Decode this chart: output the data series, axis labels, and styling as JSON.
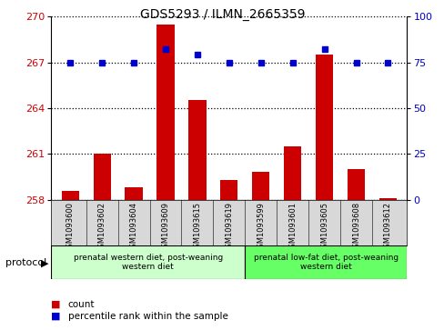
{
  "title": "GDS5293 / ILMN_2665359",
  "samples": [
    "GSM1093600",
    "GSM1093602",
    "GSM1093604",
    "GSM1093609",
    "GSM1093615",
    "GSM1093619",
    "GSM1093599",
    "GSM1093601",
    "GSM1093605",
    "GSM1093608",
    "GSM1093612"
  ],
  "bar_values": [
    258.6,
    261.0,
    258.8,
    269.5,
    264.5,
    259.3,
    259.8,
    261.5,
    267.5,
    260.0,
    258.1
  ],
  "blue_values": [
    75,
    75,
    75,
    82,
    79,
    75,
    75,
    75,
    82,
    75,
    75
  ],
  "bar_color": "#cc0000",
  "blue_color": "#0000cc",
  "ylim_left": [
    258,
    270
  ],
  "ylim_right": [
    0,
    100
  ],
  "yticks_left": [
    258,
    261,
    264,
    267,
    270
  ],
  "yticks_right": [
    0,
    25,
    50,
    75,
    100
  ],
  "group1_label": "prenatal western diet, post-weaning\nwestern diet",
  "group2_label": "prenatal low-fat diet, post-weaning\nwestern diet",
  "group1_count": 6,
  "group2_count": 5,
  "group1_color": "#ccffcc",
  "group2_color": "#66ff66",
  "protocol_label": "protocol",
  "legend_count": "count",
  "legend_pct": "percentile rank within the sample",
  "bar_width": 0.55,
  "bg_gray": "#d8d8d8"
}
